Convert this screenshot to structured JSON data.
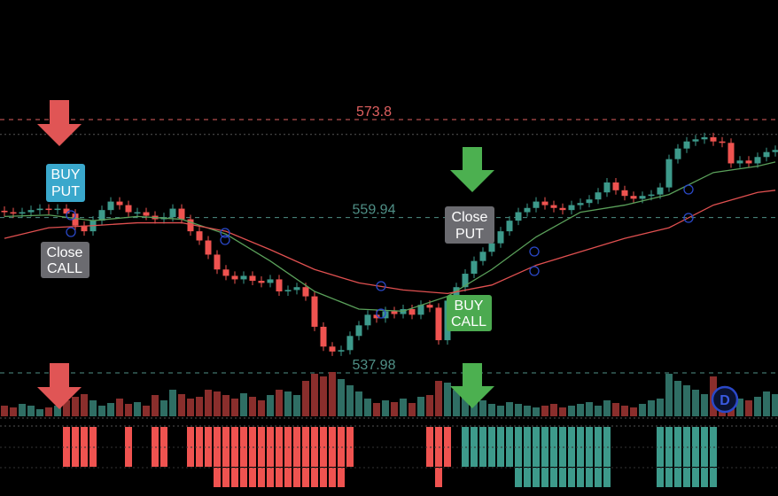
{
  "chart_data": {
    "type": "candlestick",
    "ylim": [
      535.6,
      590.7
    ],
    "up_color": "#3d9a8b",
    "down_color": "#ef5350",
    "open": [
      560.9,
      560.7,
      560.5,
      560.7,
      561.0,
      561.2,
      561.1,
      561.2,
      560.5,
      558.8,
      558.0,
      559.5,
      561.0,
      562.2,
      561.7,
      560.7,
      560.7,
      560.2,
      559.7,
      560.0,
      561.2,
      559.7,
      558.0,
      556.7,
      554.7,
      552.6,
      551.7,
      551.2,
      551.7,
      551.0,
      550.7,
      551.2,
      549.5,
      549.7,
      550.1,
      548.8,
      544.5,
      541.7,
      541.0,
      541.2,
      543.2,
      544.7,
      546.2,
      545.7,
      546.7,
      546.3,
      547.0,
      546.2,
      547.6,
      547.2,
      542.6,
      548.2,
      550.1,
      552.0,
      553.8,
      555.1,
      556.3,
      558.0,
      559.5,
      560.7,
      561.3,
      562.2,
      561.7,
      561.3,
      561.0,
      561.7,
      562.0,
      562.5,
      563.5,
      564.9,
      563.8,
      563.0,
      562.6,
      563.0,
      563.2,
      564.2,
      568.2,
      569.7,
      570.7,
      571.0,
      571.3,
      570.7,
      570.5,
      567.6,
      568.0,
      567.6,
      568.5,
      569.2
    ],
    "close": [
      560.7,
      560.5,
      560.7,
      561.0,
      561.2,
      561.1,
      561.2,
      560.5,
      558.8,
      558.0,
      559.5,
      561.0,
      562.2,
      561.7,
      560.7,
      560.7,
      560.2,
      559.7,
      560.0,
      561.2,
      559.7,
      558.0,
      556.7,
      554.7,
      552.6,
      551.7,
      551.2,
      551.7,
      551.0,
      550.7,
      551.2,
      549.5,
      549.7,
      550.1,
      548.8,
      544.5,
      541.7,
      541.0,
      541.2,
      543.2,
      544.7,
      546.2,
      545.7,
      546.7,
      546.3,
      547.0,
      546.2,
      547.6,
      547.2,
      542.6,
      548.2,
      550.1,
      552.0,
      553.8,
      555.1,
      556.3,
      558.0,
      559.5,
      560.7,
      561.3,
      562.2,
      561.7,
      561.3,
      561.0,
      561.7,
      562.0,
      562.5,
      563.5,
      564.9,
      563.8,
      563.0,
      562.6,
      563.0,
      563.2,
      564.2,
      568.2,
      569.7,
      570.7,
      571.0,
      571.3,
      570.7,
      570.5,
      567.6,
      568.0,
      567.6,
      568.5,
      569.2,
      569.5
    ],
    "volume": [
      12,
      10,
      14,
      12,
      8,
      10,
      12,
      18,
      22,
      25,
      18,
      12,
      15,
      20,
      14,
      16,
      12,
      24,
      18,
      30,
      25,
      20,
      22,
      30,
      28,
      24,
      20,
      26,
      22,
      18,
      24,
      30,
      28,
      24,
      40,
      48,
      45,
      50,
      42,
      35,
      28,
      20,
      15,
      18,
      16,
      20,
      15,
      22,
      24,
      40,
      38,
      30,
      26,
      20,
      18,
      14,
      12,
      16,
      14,
      12,
      10,
      12,
      14,
      10,
      12,
      14,
      16,
      12,
      18,
      15,
      12,
      10,
      14,
      18,
      20,
      48,
      40,
      35,
      30,
      25,
      45,
      28,
      30,
      20,
      18,
      22,
      28,
      25
    ],
    "volume_lim": [
      0,
      55
    ],
    "signal": [
      0,
      0,
      0,
      0,
      0,
      0,
      0,
      -1,
      -1,
      -1,
      -1,
      0,
      0,
      0,
      -1,
      0,
      0,
      -1,
      -1,
      0,
      0,
      -1,
      -1,
      -1,
      -2,
      -2,
      -2,
      -2,
      -2,
      -2,
      -2,
      -2,
      -2,
      -2,
      -2,
      -2,
      -2,
      -2,
      -2,
      -1,
      0,
      0,
      0,
      0,
      0,
      0,
      0,
      0,
      -1,
      -2,
      -1,
      0,
      1,
      1,
      1,
      1,
      1,
      1,
      2,
      2,
      2,
      2,
      2,
      2,
      2,
      2,
      2,
      2,
      2,
      0,
      0,
      0,
      0,
      0,
      2,
      2,
      2,
      2,
      2,
      2,
      2,
      0,
      0,
      0,
      0,
      0,
      0,
      0
    ],
    "series": [
      {
        "color": "#5aa05a",
        "x": [
          0,
          5,
          10,
          15,
          20,
          25,
          30,
          35,
          40,
          45,
          50,
          55,
          60,
          65,
          70,
          75,
          80,
          85,
          87
        ],
        "values": [
          560.1,
          560.3,
          559.5,
          560.1,
          559.7,
          557.6,
          553.8,
          549.5,
          547.0,
          546.7,
          548.8,
          552.6,
          557.2,
          560.7,
          561.7,
          563.2,
          566.3,
          567.2,
          567.8
        ]
      },
      {
        "color": "#e05050",
        "x": [
          0,
          5,
          10,
          15,
          20,
          25,
          30,
          35,
          40,
          45,
          50,
          55,
          60,
          65,
          70,
          75,
          80,
          85,
          87
        ],
        "values": [
          557.0,
          558.5,
          558.8,
          559.2,
          559.2,
          558.0,
          555.4,
          552.6,
          550.7,
          549.7,
          549.2,
          550.4,
          553.2,
          555.1,
          557.0,
          558.5,
          561.7,
          563.5,
          563.8
        ]
      }
    ],
    "price_levels": [
      573.8,
      559.94,
      537.98
    ],
    "level_colors": [
      "#e06060",
      "#4f8f86",
      "#4f8f86"
    ],
    "guide_lines": [
      571.7
    ],
    "annotations": [
      {
        "lines": [
          "BUY",
          "PUT"
        ]
      },
      {
        "lines": [
          "Close",
          "CALL"
        ]
      },
      {
        "lines": [
          "Close",
          "PUT"
        ]
      },
      {
        "lines": [
          "BUY",
          "CALL"
        ]
      }
    ],
    "logo": "D"
  }
}
